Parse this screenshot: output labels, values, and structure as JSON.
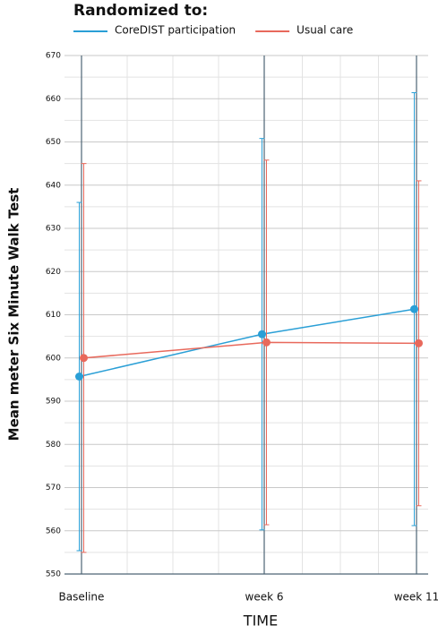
{
  "chart_data": {
    "type": "line",
    "legend_title": "Randomized to:",
    "y_label": "Mean meter Six Minute Walk Test",
    "x_label": "TIME",
    "x": [
      0,
      6,
      11
    ],
    "xlim": [
      0,
      11
    ],
    "xticks": [
      {
        "value": 0,
        "label": "Baseline"
      },
      {
        "value": 6,
        "label": "week 6"
      },
      {
        "value": 11,
        "label": "week 11"
      }
    ],
    "ylim": [
      550,
      670
    ],
    "yticks": [
      550,
      560,
      570,
      580,
      590,
      600,
      610,
      620,
      630,
      640,
      650,
      660,
      670
    ],
    "grid": true,
    "legend": "top",
    "series": [
      {
        "name": "CoreDIST participation",
        "color": "#2a9fd6",
        "values": [
          595.7,
          605.5,
          611.3
        ],
        "errors": [
          40.3,
          45.3,
          50.1
        ]
      },
      {
        "name": "Usual care",
        "color": "#e8695c",
        "values": [
          600,
          603.6,
          603.4
        ],
        "errors": [
          45,
          42.2,
          37.6
        ]
      }
    ]
  }
}
